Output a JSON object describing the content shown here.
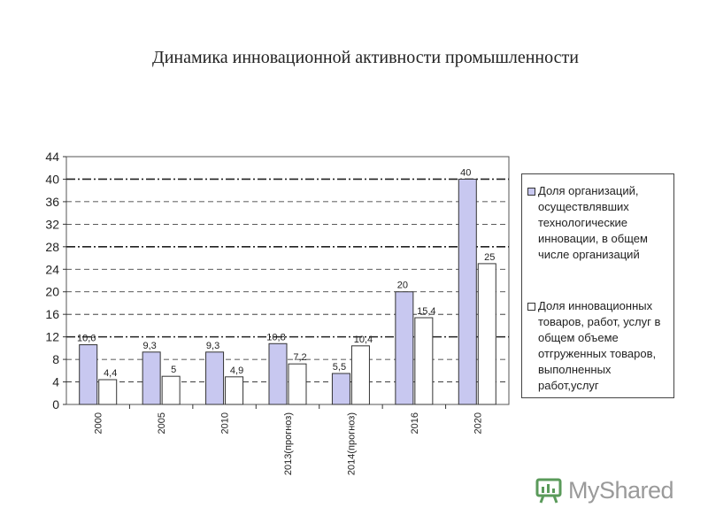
{
  "chart_data": {
    "type": "bar",
    "title": "Динамика инновационной активности промышленности",
    "categories": [
      "2000",
      "2005",
      "2010",
      "2013(прогноз)",
      "2014(прогноз)",
      "2016",
      "2020"
    ],
    "series": [
      {
        "name": "Доля организаций, осуществлявших технологические инновации, в общем числе организаций",
        "values": [
          10.6,
          9.3,
          9.3,
          10.8,
          5.5,
          20,
          40
        ],
        "labels": [
          "10,6",
          "9,3",
          "9,3",
          "10,8",
          "5,5",
          "20",
          "40"
        ],
        "color": "#c8c8f0"
      },
      {
        "name": "Доля инновационных товаров, работ, услуг в общем объеме отгруженных товаров, выполненных работ,услуг",
        "values": [
          4.4,
          5,
          4.9,
          7.2,
          10.4,
          15.4,
          25
        ],
        "labels": [
          "4,4",
          "5",
          "4,9",
          "7,2",
          "10,4",
          "15,4",
          "25"
        ],
        "color": "#ffffff"
      }
    ],
    "ylim": [
      0,
      44
    ],
    "yticks": [
      0,
      4,
      8,
      12,
      16,
      20,
      24,
      28,
      32,
      36,
      40,
      44
    ],
    "grid": true,
    "legend_position": "right"
  },
  "watermark": {
    "text": "MyShared"
  }
}
